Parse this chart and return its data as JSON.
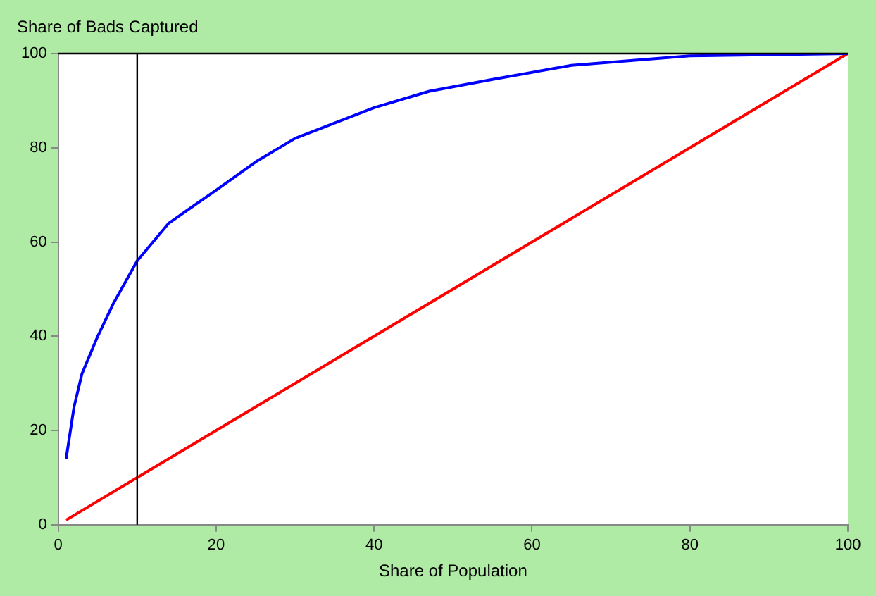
{
  "chart_data": {
    "type": "line",
    "xlabel": "Share of Population",
    "ylabel": "Share of Bads Captured",
    "xlim": [
      0,
      100
    ],
    "xticks": [
      0,
      20,
      40,
      60,
      80,
      100
    ],
    "ylim": [
      0,
      100
    ],
    "yticks": [
      0,
      20,
      40,
      60,
      80,
      100
    ],
    "grid": false,
    "legend": false,
    "marker": "none",
    "line_style": "solid",
    "series": [
      {
        "color": "#0000ff",
        "x": [
          1,
          2,
          3,
          5,
          7,
          10,
          14,
          20,
          25,
          30,
          40,
          47,
          55,
          65,
          80,
          100
        ],
        "values": [
          14,
          25,
          32,
          40,
          47,
          56,
          64,
          71,
          77,
          82,
          88.5,
          92,
          94.5,
          97.5,
          99.5,
          100
        ]
      },
      {
        "color": "#ff0000",
        "x": [
          1,
          100
        ],
        "values": [
          1,
          100
        ]
      }
    ],
    "ref_lines": [
      {
        "axis": "x",
        "value": 10,
        "color": "#000000"
      },
      {
        "axis": "y",
        "value": 100,
        "color": "#000000"
      }
    ]
  }
}
